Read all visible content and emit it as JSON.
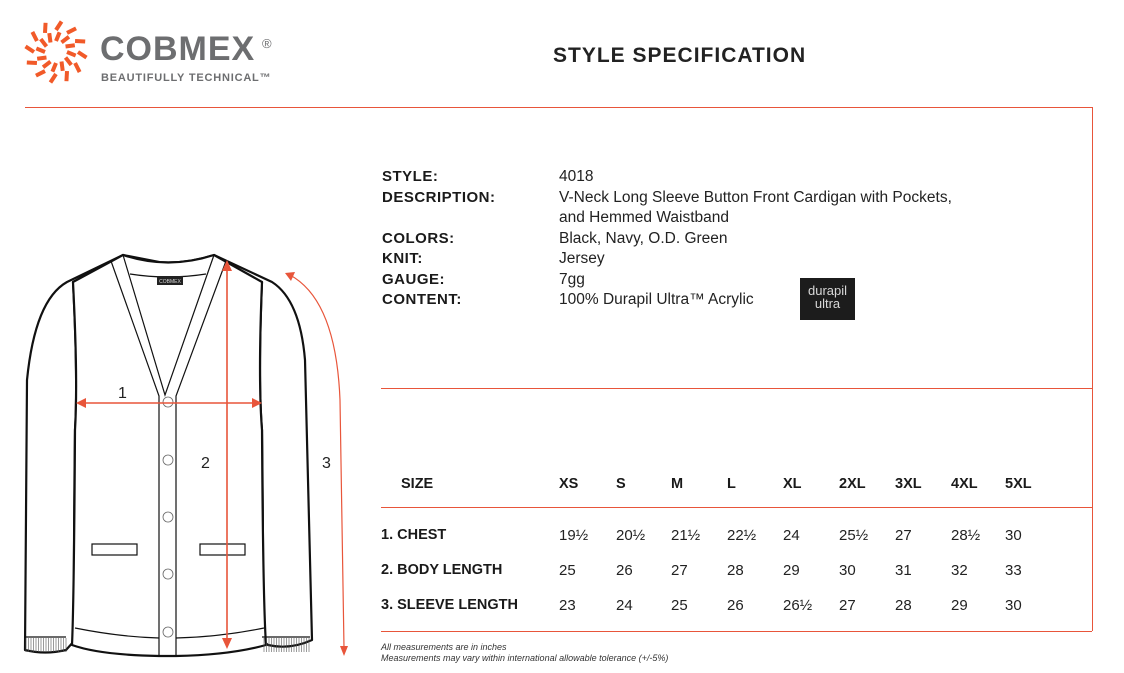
{
  "brand": {
    "name": "COBMEX",
    "registered": "®",
    "tagline": "BEAUTIFULLY TECHNICAL™",
    "color": "#f15a29"
  },
  "title": "STYLE SPECIFICATION",
  "spec": [
    {
      "label": "STYLE:",
      "value": "4018"
    },
    {
      "label": "DESCRIPTION:",
      "value": "V-Neck Long Sleeve Button Front Cardigan with Pockets,",
      "value2": "and Hemmed Waistband"
    },
    {
      "label": "COLORS:",
      "value": "Black, Navy, O.D. Green"
    },
    {
      "label": "KNIT:",
      "value": "Jersey"
    },
    {
      "label": "GAUGE:",
      "value": "7gg"
    },
    {
      "label": "CONTENT:",
      "value": "100% Durapil Ultra™ Acrylic"
    }
  ],
  "durapil_logo": {
    "line1": "durapil",
    "line2": "ultra"
  },
  "diagram": {
    "labels": [
      "1",
      "2",
      "3"
    ],
    "garment_label": "COBMEX",
    "arrow_color": "#e8553a"
  },
  "size_chart": {
    "header": "SIZE",
    "sizes": [
      "XS",
      "S",
      "M",
      "L",
      "XL",
      "2XL",
      "3XL",
      "4XL",
      "5XL"
    ],
    "rows": [
      {
        "label": "1.  CHEST",
        "values": [
          "19½",
          "20½",
          "21½",
          "22½",
          "24",
          "25½",
          "27",
          "28½",
          "30"
        ]
      },
      {
        "label": "2. BODY LENGTH",
        "values": [
          "25",
          "26",
          "27",
          "28",
          "29",
          "30",
          "31",
          "32",
          "33"
        ]
      },
      {
        "label": "3. SLEEVE LENGTH",
        "values": [
          "23",
          "24",
          "25",
          "26",
          "26½",
          "27",
          "28",
          "29",
          "30"
        ]
      }
    ]
  },
  "notes": [
    "All measurements are in inches",
    "Measurements may vary within international allowable tolerance (+/-5%)"
  ]
}
